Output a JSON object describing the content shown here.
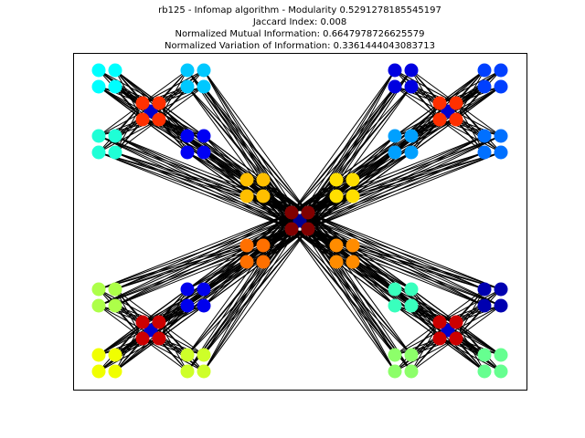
{
  "figure": {
    "title_lines": [
      "rb125 - Infomap algorithm - Modularity 0.5291278185545197",
      "Jaccard Index: 0.008",
      "Normalized Mutual Information: 0.6647978726625579",
      "Normalized Variation of Information: 0.3361444043083713"
    ]
  },
  "graph": {
    "edge_color": "#000000",
    "frame_color": "#000000",
    "clusters": [
      {
        "id": "center",
        "color": "#800000",
        "center_color": "#00008f"
      },
      {
        "id": "top-left-hub",
        "color": "#ff3000",
        "center_color": "#0000cd"
      },
      {
        "id": "top-right-hub",
        "color": "#ff3000",
        "center_color": "#0000cd"
      },
      {
        "id": "bottom-left-hub",
        "color": "#cc0000",
        "center_color": "#0000cd"
      },
      {
        "id": "bottom-right-hub",
        "color": "#cc0000",
        "center_color": "#0000cd"
      },
      {
        "id": "tl-a",
        "color": "#00ffff"
      },
      {
        "id": "tl-b",
        "color": "#00c8ff"
      },
      {
        "id": "tl-c",
        "color": "#1fffd6"
      },
      {
        "id": "tl-d",
        "color": "#0000f4"
      },
      {
        "id": "tl-e",
        "color": "#ffbf00"
      },
      {
        "id": "tr-a",
        "color": "#0000e0"
      },
      {
        "id": "tr-b",
        "color": "#0040ff"
      },
      {
        "id": "tr-c",
        "color": "#00a0ff"
      },
      {
        "id": "tr-d",
        "color": "#0070ff"
      },
      {
        "id": "tr-e",
        "color": "#ffdf00"
      },
      {
        "id": "bl-a",
        "color": "#adff49"
      },
      {
        "id": "bl-b",
        "color": "#0000ed"
      },
      {
        "id": "bl-c",
        "color": "#f0ff00"
      },
      {
        "id": "bl-d",
        "color": "#ceff29"
      },
      {
        "id": "bl-e",
        "color": "#ff7000"
      },
      {
        "id": "br-a",
        "color": "#39ffbd"
      },
      {
        "id": "br-b",
        "color": "#0000b0"
      },
      {
        "id": "br-c",
        "color": "#8dff6a"
      },
      {
        "id": "br-d",
        "color": "#66ff90"
      },
      {
        "id": "br-e",
        "color": "#ff8c00"
      }
    ]
  }
}
